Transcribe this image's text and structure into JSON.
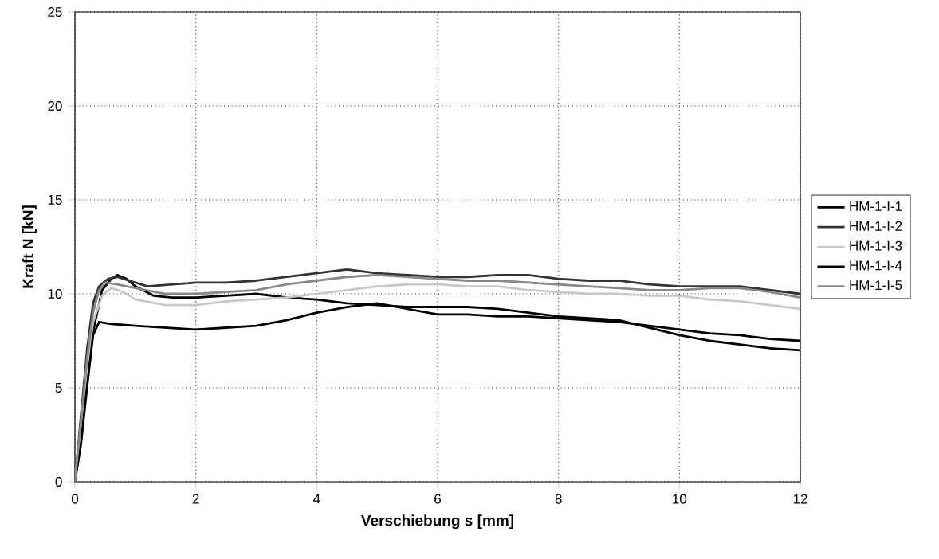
{
  "chart_data": {
    "type": "line",
    "xlabel": "Verschiebung s [mm]",
    "ylabel": "Kraft N [kN]",
    "xlim": [
      0,
      12
    ],
    "ylim": [
      0,
      25
    ],
    "xticks": [
      0,
      2,
      4,
      6,
      8,
      10,
      12
    ],
    "yticks": [
      0,
      5,
      10,
      15,
      20,
      25
    ],
    "grid": true,
    "legend": "right",
    "line_style": "solid",
    "marker": "none",
    "series": [
      {
        "name": "HM-1-I-1",
        "color": "#000000",
        "x": [
          0,
          0.1,
          0.2,
          0.3,
          0.45,
          0.6,
          0.7,
          0.85,
          1.0,
          1.3,
          1.6,
          2.0,
          2.5,
          3.0,
          3.5,
          4.0,
          4.5,
          5.0,
          5.5,
          6.0,
          6.5,
          7.0,
          7.5,
          8.0,
          8.5,
          9.0,
          9.5,
          10.0,
          10.5,
          11.0,
          11.5,
          12.0
        ],
        "values": [
          0,
          2.5,
          5.5,
          8.0,
          10.2,
          10.8,
          11.0,
          10.8,
          10.4,
          9.9,
          9.8,
          9.8,
          9.9,
          10.0,
          9.8,
          9.7,
          9.5,
          9.4,
          9.3,
          9.3,
          9.3,
          9.2,
          9.0,
          8.8,
          8.7,
          8.6,
          8.2,
          7.8,
          7.5,
          7.3,
          7.1,
          7.0
        ]
      },
      {
        "name": "HM-1-I-2",
        "color": "#333333",
        "x": [
          0,
          0.1,
          0.2,
          0.3,
          0.4,
          0.55,
          0.7,
          0.9,
          1.2,
          1.6,
          2.0,
          2.5,
          3.0,
          3.5,
          4.0,
          4.5,
          5.0,
          5.5,
          6.0,
          6.5,
          7.0,
          7.5,
          8.0,
          8.5,
          9.0,
          9.5,
          10.0,
          10.5,
          11.0,
          11.5,
          12.0
        ],
        "values": [
          0,
          3.5,
          7.0,
          9.5,
          10.4,
          10.8,
          10.9,
          10.7,
          10.4,
          10.5,
          10.6,
          10.6,
          10.7,
          10.9,
          11.1,
          11.3,
          11.1,
          11.0,
          10.9,
          10.9,
          11.0,
          11.0,
          10.8,
          10.7,
          10.7,
          10.5,
          10.4,
          10.4,
          10.4,
          10.2,
          10.0
        ]
      },
      {
        "name": "HM-1-I-3",
        "color": "#c8c8c8",
        "x": [
          0,
          0.1,
          0.2,
          0.3,
          0.45,
          0.6,
          0.8,
          1.0,
          1.5,
          2.0,
          2.5,
          3.0,
          3.5,
          4.0,
          4.5,
          5.0,
          5.5,
          6.0,
          6.5,
          7.0,
          7.5,
          8.0,
          8.5,
          9.0,
          9.5,
          10.0,
          10.5,
          11.0,
          11.5,
          12.0
        ],
        "values": [
          0,
          3.0,
          6.0,
          8.5,
          9.9,
          10.3,
          10.1,
          9.7,
          9.4,
          9.4,
          9.6,
          9.7,
          9.8,
          10.0,
          10.2,
          10.4,
          10.5,
          10.5,
          10.4,
          10.4,
          10.2,
          10.1,
          10.0,
          10.0,
          9.9,
          9.9,
          9.7,
          9.6,
          9.4,
          9.2
        ]
      },
      {
        "name": "HM-1-I-4",
        "color": "#000000",
        "x": [
          0,
          0.1,
          0.2,
          0.3,
          0.4,
          0.6,
          1.0,
          1.5,
          2.0,
          2.5,
          3.0,
          3.5,
          4.0,
          4.5,
          5.0,
          5.5,
          6.0,
          6.5,
          7.0,
          7.5,
          8.0,
          8.5,
          9.0,
          9.5,
          10.0,
          10.5,
          11.0,
          11.5,
          12.0
        ],
        "values": [
          0,
          2.0,
          5.0,
          7.8,
          8.5,
          8.4,
          8.3,
          8.2,
          8.1,
          8.2,
          8.3,
          8.6,
          9.0,
          9.3,
          9.5,
          9.2,
          8.9,
          8.9,
          8.8,
          8.8,
          8.7,
          8.6,
          8.5,
          8.3,
          8.1,
          7.9,
          7.8,
          7.6,
          7.5
        ]
      },
      {
        "name": "HM-1-I-5",
        "color": "#888888",
        "x": [
          0,
          0.1,
          0.2,
          0.3,
          0.4,
          0.5,
          0.7,
          1.0,
          1.5,
          2.0,
          2.5,
          3.0,
          3.5,
          4.0,
          4.5,
          5.0,
          5.5,
          6.0,
          6.5,
          7.0,
          7.5,
          8.0,
          8.5,
          9.0,
          9.5,
          10.0,
          10.5,
          11.0,
          11.5,
          12.0
        ],
        "values": [
          0,
          3.2,
          6.5,
          9.0,
          10.2,
          10.6,
          10.5,
          10.3,
          10.0,
          10.0,
          10.1,
          10.2,
          10.5,
          10.7,
          10.9,
          11.0,
          10.9,
          10.8,
          10.7,
          10.7,
          10.6,
          10.5,
          10.4,
          10.3,
          10.2,
          10.2,
          10.3,
          10.3,
          10.1,
          9.8
        ]
      }
    ]
  }
}
